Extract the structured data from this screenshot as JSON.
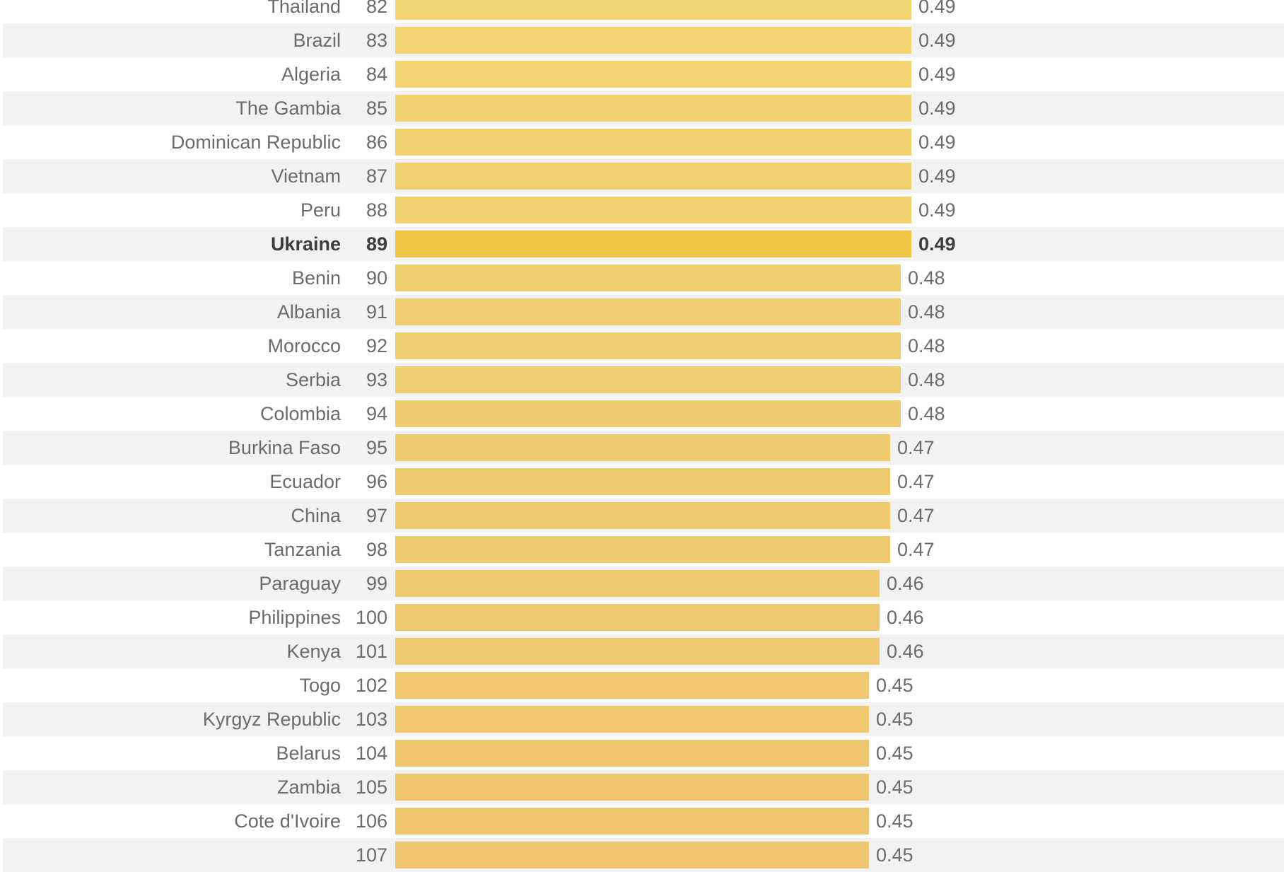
{
  "chart_data": {
    "type": "bar",
    "orientation": "horizontal",
    "title": "",
    "xlabel": "",
    "ylabel": "",
    "highlight": "Ukraine",
    "colors": {
      "default_bar_top": "#f1d472",
      "default_bar_bottom": "#edc46f",
      "highlight_bar": "#eec545",
      "row_stripe": "#f2f2f2",
      "label": "#6b6b6b",
      "highlight_label": "#3d3d3d"
    },
    "rows": [
      {
        "country": "Thailand",
        "rank": "82",
        "value": 0.49
      },
      {
        "country": "Brazil",
        "rank": "83",
        "value": 0.49
      },
      {
        "country": "Algeria",
        "rank": "84",
        "value": 0.49
      },
      {
        "country": "The Gambia",
        "rank": "85",
        "value": 0.49
      },
      {
        "country": "Dominican Republic",
        "rank": "86",
        "value": 0.49
      },
      {
        "country": "Vietnam",
        "rank": "87",
        "value": 0.49
      },
      {
        "country": "Peru",
        "rank": "88",
        "value": 0.49
      },
      {
        "country": "Ukraine",
        "rank": "89",
        "value": 0.49
      },
      {
        "country": "Benin",
        "rank": "90",
        "value": 0.48
      },
      {
        "country": "Albania",
        "rank": "91",
        "value": 0.48
      },
      {
        "country": "Morocco",
        "rank": "92",
        "value": 0.48
      },
      {
        "country": "Serbia",
        "rank": "93",
        "value": 0.48
      },
      {
        "country": "Colombia",
        "rank": "94",
        "value": 0.48
      },
      {
        "country": "Burkina Faso",
        "rank": "95",
        "value": 0.47
      },
      {
        "country": "Ecuador",
        "rank": "96",
        "value": 0.47
      },
      {
        "country": "China",
        "rank": "97",
        "value": 0.47
      },
      {
        "country": "Tanzania",
        "rank": "98",
        "value": 0.47
      },
      {
        "country": "Paraguay",
        "rank": "99",
        "value": 0.46
      },
      {
        "country": "Philippines",
        "rank": "100",
        "value": 0.46
      },
      {
        "country": "Kenya",
        "rank": "101",
        "value": 0.46
      },
      {
        "country": "Togo",
        "rank": "102",
        "value": 0.45
      },
      {
        "country": "Kyrgyz Republic",
        "rank": "103",
        "value": 0.45
      },
      {
        "country": "Belarus",
        "rank": "104",
        "value": 0.45
      },
      {
        "country": "Zambia",
        "rank": "105",
        "value": 0.45
      },
      {
        "country": "Cote d'Ivoire",
        "rank": "106",
        "value": 0.45
      },
      {
        "country": "",
        "rank": "107",
        "value": 0.45
      }
    ]
  }
}
